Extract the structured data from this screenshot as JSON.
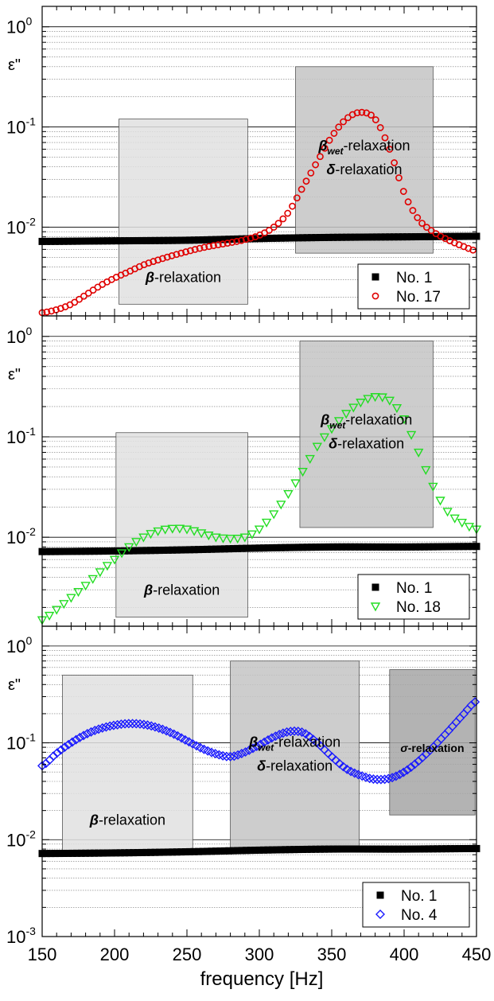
{
  "chart_data": [
    {
      "type": "scatter",
      "ylabel": "ε\"",
      "yscale": "log",
      "xlim": [
        150,
        450
      ],
      "ylim": [
        0.0013,
        1.6
      ],
      "y_tick_labels": [
        {
          "value": 0.01,
          "base": "10",
          "exp": "-2"
        },
        {
          "value": 0.1,
          "base": "10",
          "exp": "-1"
        },
        {
          "value": 1,
          "base": "10",
          "exp": "0"
        }
      ],
      "regions": [
        {
          "label": "-relaxation",
          "symbol": "β",
          "x": [
            203,
            292
          ],
          "y": [
            0.0017,
            0.12
          ],
          "shade": "#e0e0e0"
        },
        {
          "label": "-relaxation",
          "symbol": "β",
          "sub": "wet",
          "label2": "-relaxation",
          "symbol2": "δ",
          "x": [
            325,
            420
          ],
          "y": [
            0.0055,
            0.4
          ],
          "shade": "#c4c4c4"
        }
      ],
      "legend": {
        "position": "bottom-right",
        "entries": [
          "No. 1",
          "No. 17"
        ]
      },
      "series": [
        {
          "name": "No. 1",
          "marker": "square",
          "color": "#000000",
          "x": [
            150,
            200,
            250,
            300,
            350,
            400,
            450
          ],
          "y": [
            0.0072,
            0.0073,
            0.0074,
            0.0077,
            0.0079,
            0.008,
            0.0081
          ]
        },
        {
          "name": "No. 17",
          "marker": "circle",
          "color": "#e00000",
          "x": [
            150,
            160,
            170,
            180,
            190,
            200,
            210,
            220,
            230,
            240,
            250,
            260,
            270,
            280,
            290,
            300,
            310,
            320,
            330,
            340,
            350,
            360,
            370,
            380,
            390,
            400,
            410,
            420,
            430,
            440,
            450
          ],
          "y": [
            0.0014,
            0.0015,
            0.0017,
            0.0021,
            0.0026,
            0.0031,
            0.0036,
            0.0042,
            0.0047,
            0.0052,
            0.0057,
            0.0062,
            0.0066,
            0.007,
            0.0075,
            0.0083,
            0.01,
            0.014,
            0.025,
            0.045,
            0.08,
            0.12,
            0.14,
            0.12,
            0.06,
            0.022,
            0.012,
            0.009,
            0.0075,
            0.0065,
            0.0058
          ]
        }
      ]
    },
    {
      "type": "scatter",
      "ylabel": "ε\"",
      "yscale": "log",
      "xlim": [
        150,
        450
      ],
      "ylim": [
        0.0013,
        1.6
      ],
      "y_tick_labels": [
        {
          "value": 0.01,
          "base": "10",
          "exp": "-2"
        },
        {
          "value": 0.1,
          "base": "10",
          "exp": "-1"
        },
        {
          "value": 1,
          "base": "10",
          "exp": "0"
        }
      ],
      "regions": [
        {
          "label": "-relaxation",
          "symbol": "β",
          "x": [
            201,
            292
          ],
          "y": [
            0.0016,
            0.11
          ],
          "shade": "#e0e0e0"
        },
        {
          "label": "-relaxation",
          "symbol": "β",
          "sub": "wet",
          "label2": "-relaxation",
          "symbol2": "δ",
          "x": [
            328,
            420
          ],
          "y": [
            0.0125,
            0.9
          ],
          "shade": "#c4c4c4"
        }
      ],
      "legend": {
        "position": "bottom-right",
        "entries": [
          "No. 1",
          "No. 18"
        ]
      },
      "series": [
        {
          "name": "No. 1",
          "marker": "square",
          "color": "#000000",
          "x": [
            150,
            200,
            250,
            300,
            350,
            400,
            450
          ],
          "y": [
            0.0072,
            0.0073,
            0.0075,
            0.0078,
            0.008,
            0.008,
            0.0081
          ]
        },
        {
          "name": "No. 18",
          "marker": "triangle-down",
          "color": "#22dd22",
          "x": [
            150,
            160,
            170,
            180,
            190,
            200,
            210,
            220,
            230,
            240,
            250,
            260,
            270,
            280,
            290,
            300,
            310,
            320,
            330,
            340,
            350,
            360,
            370,
            380,
            390,
            400,
            410,
            420,
            430,
            440,
            450
          ],
          "y": [
            0.0015,
            0.0019,
            0.0025,
            0.0033,
            0.0045,
            0.006,
            0.008,
            0.01,
            0.0115,
            0.0122,
            0.012,
            0.011,
            0.01,
            0.0097,
            0.01,
            0.012,
            0.017,
            0.027,
            0.045,
            0.08,
            0.12,
            0.17,
            0.22,
            0.25,
            0.23,
            0.15,
            0.07,
            0.032,
            0.018,
            0.014,
            0.012
          ]
        }
      ]
    },
    {
      "type": "scatter",
      "ylabel": "ε\"",
      "xlabel": "frequency [Hz]",
      "yscale": "log",
      "xlim": [
        150,
        450
      ],
      "ylim": [
        0.001,
        1.6
      ],
      "x_tick_labels": [
        "150",
        "200",
        "250",
        "300",
        "350",
        "400",
        "450"
      ],
      "y_tick_labels": [
        {
          "value": 0.001,
          "base": "10",
          "exp": "-3"
        },
        {
          "value": 0.01,
          "base": "10",
          "exp": "-2"
        },
        {
          "value": 0.1,
          "base": "10",
          "exp": "-1"
        },
        {
          "value": 1,
          "base": "10",
          "exp": "0"
        }
      ],
      "regions": [
        {
          "label": "-relaxation",
          "symbol": "β",
          "x": [
            164,
            254
          ],
          "y": [
            0.0075,
            0.5
          ],
          "shade": "#e0e0e0"
        },
        {
          "label": "-relaxation",
          "symbol": "β",
          "sub": "wet",
          "label2": "-relaxation",
          "symbol2": "δ",
          "x": [
            280,
            369
          ],
          "y": [
            0.0075,
            0.7
          ],
          "shade": "#c4c4c4"
        },
        {
          "label": "-relaxation",
          "symbol": "σ",
          "x": [
            390,
            449
          ],
          "y": [
            0.018,
            0.57
          ],
          "shade": "#a6a6a6"
        }
      ],
      "legend": {
        "position": "bottom-right",
        "entries": [
          "No. 1",
          "No. 4"
        ]
      },
      "series": [
        {
          "name": "No. 1",
          "marker": "square",
          "color": "#000000",
          "x": [
            150,
            200,
            250,
            300,
            350,
            400,
            450
          ],
          "y": [
            0.0072,
            0.0073,
            0.0075,
            0.0078,
            0.008,
            0.008,
            0.0081
          ]
        },
        {
          "name": "No. 4",
          "marker": "diamond",
          "color": "#1a1aff",
          "x": [
            150,
            160,
            170,
            180,
            190,
            200,
            210,
            220,
            230,
            240,
            250,
            260,
            270,
            280,
            290,
            300,
            310,
            320,
            330,
            340,
            350,
            360,
            370,
            380,
            390,
            400,
            410,
            420,
            430,
            440,
            450
          ],
          "y": [
            0.058,
            0.078,
            0.1,
            0.122,
            0.14,
            0.152,
            0.158,
            0.155,
            0.143,
            0.125,
            0.105,
            0.088,
            0.077,
            0.072,
            0.08,
            0.095,
            0.115,
            0.13,
            0.128,
            0.1,
            0.072,
            0.054,
            0.046,
            0.042,
            0.043,
            0.05,
            0.065,
            0.09,
            0.13,
            0.19,
            0.27
          ]
        }
      ]
    }
  ]
}
